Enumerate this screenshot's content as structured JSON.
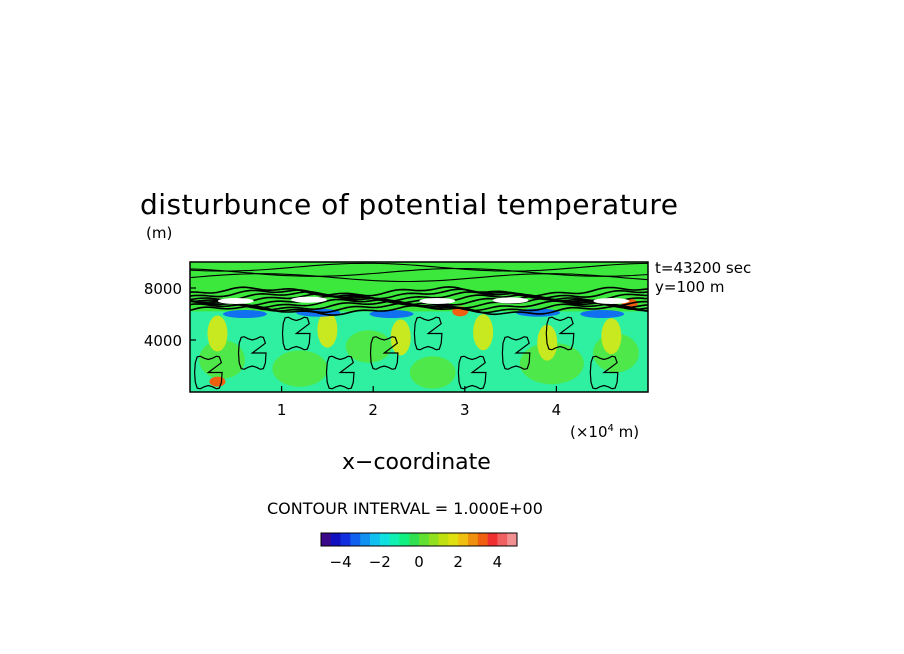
{
  "chart_data": {
    "type": "heatmap",
    "title": "disturbunce of potential temperature",
    "ylabel_unit": "(m)",
    "xlabel": "x−coordinate",
    "xlabel_unit_prefix": "(×10",
    "xlabel_unit_exp": "4",
    "xlabel_unit_suffix": " m)",
    "xlim": [
      0,
      5
    ],
    "ylim": [
      0,
      10000
    ],
    "x_ticks": [
      1,
      2,
      3,
      4
    ],
    "x_tick_labels": [
      "1",
      "2",
      "3",
      "4"
    ],
    "y_ticks": [
      4000,
      8000
    ],
    "y_tick_labels": [
      "4000",
      "8000"
    ],
    "annotations": [
      "t=43200 sec",
      "y=100 m"
    ],
    "contour_interval": "CONTOUR INTERVAL = 1.000E+00",
    "colorbar": {
      "tick_labels": [
        "−4",
        "−2",
        "0",
        "2",
        "4"
      ],
      "tick_values": [
        -4,
        -2,
        0,
        2,
        4
      ],
      "range": [
        -5,
        5
      ],
      "colors": [
        "#3a0a8a",
        "#1010c0",
        "#1030e0",
        "#1060f0",
        "#1090f0",
        "#10c0f0",
        "#10e0e0",
        "#10f0b0",
        "#10f080",
        "#30e050",
        "#60e030",
        "#90e020",
        "#c0e010",
        "#e0e010",
        "#f0c010",
        "#f09010",
        "#f06010",
        "#f03030",
        "#f06060",
        "#f09090"
      ]
    },
    "field_description_levels": {
      "background": 0.5,
      "inversion_band_height_m": 7000
    }
  }
}
